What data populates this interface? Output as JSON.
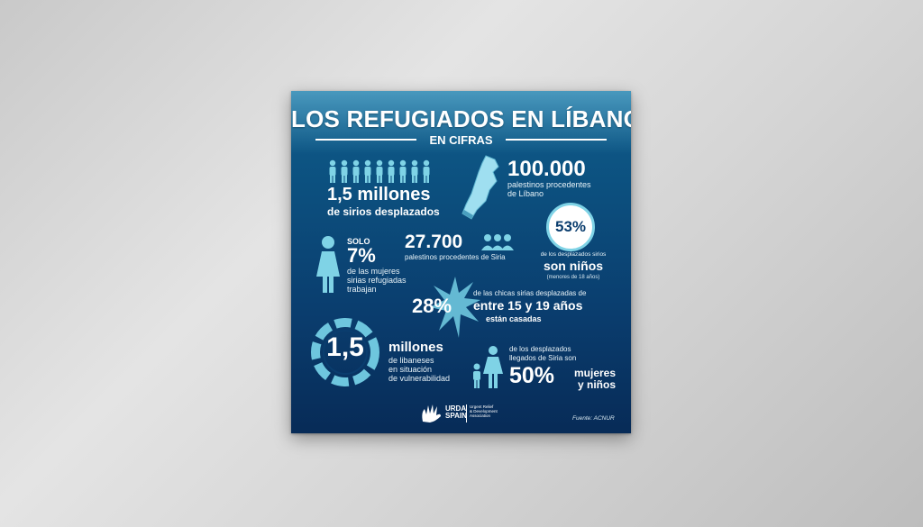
{
  "title": "LOS REFUGIADOS EN LÍBANO",
  "subtitle": "EN CIFRAS",
  "stats": {
    "sirios": {
      "value": "1,5 millones",
      "label": "de sirios desplazados"
    },
    "palestinos_libano": {
      "value": "100.000",
      "label_line1": "palestinos procedentes",
      "label_line2": "de Líbano"
    },
    "ninos": {
      "value": "53%",
      "label": "de los desplazados sirios",
      "highlight": "son niños",
      "note": "(menores de 18 años)"
    },
    "mujeres": {
      "prefix": "SOLO",
      "value": "7%",
      "label_line1": "de las mujeres",
      "label_line2": "sirias refugiadas",
      "label_line3": "trabajan"
    },
    "palestinos_siria": {
      "value": "27.700",
      "label": "palestinos procedentes de Siria"
    },
    "chicas": {
      "value": "28%",
      "label": "de las chicas sirias desplazadas de",
      "highlight": "entre 15 y 19 años",
      "tail": "están casadas"
    },
    "libaneses": {
      "value": "1,5",
      "word": "millones",
      "label_line1": "de libaneses",
      "label_line2": "en situación",
      "label_line3": "de vulnerabilidad"
    },
    "desplazados": {
      "label_line1": "de los desplazados",
      "label_line2": "llegados de Siria son",
      "value": "50%",
      "highlight_line1": "mujeres",
      "highlight_line2": "y niños"
    }
  },
  "logo": {
    "name_line1": "URDA",
    "name_line2": "SPAIN",
    "tagline_line1": "Urgent Relief",
    "tagline_line2": "& Development",
    "tagline_line3": "Association"
  },
  "source": "Fuente: ACNUR",
  "colors": {
    "accent": "#7fd3e6",
    "background": "#0a3d6e"
  }
}
